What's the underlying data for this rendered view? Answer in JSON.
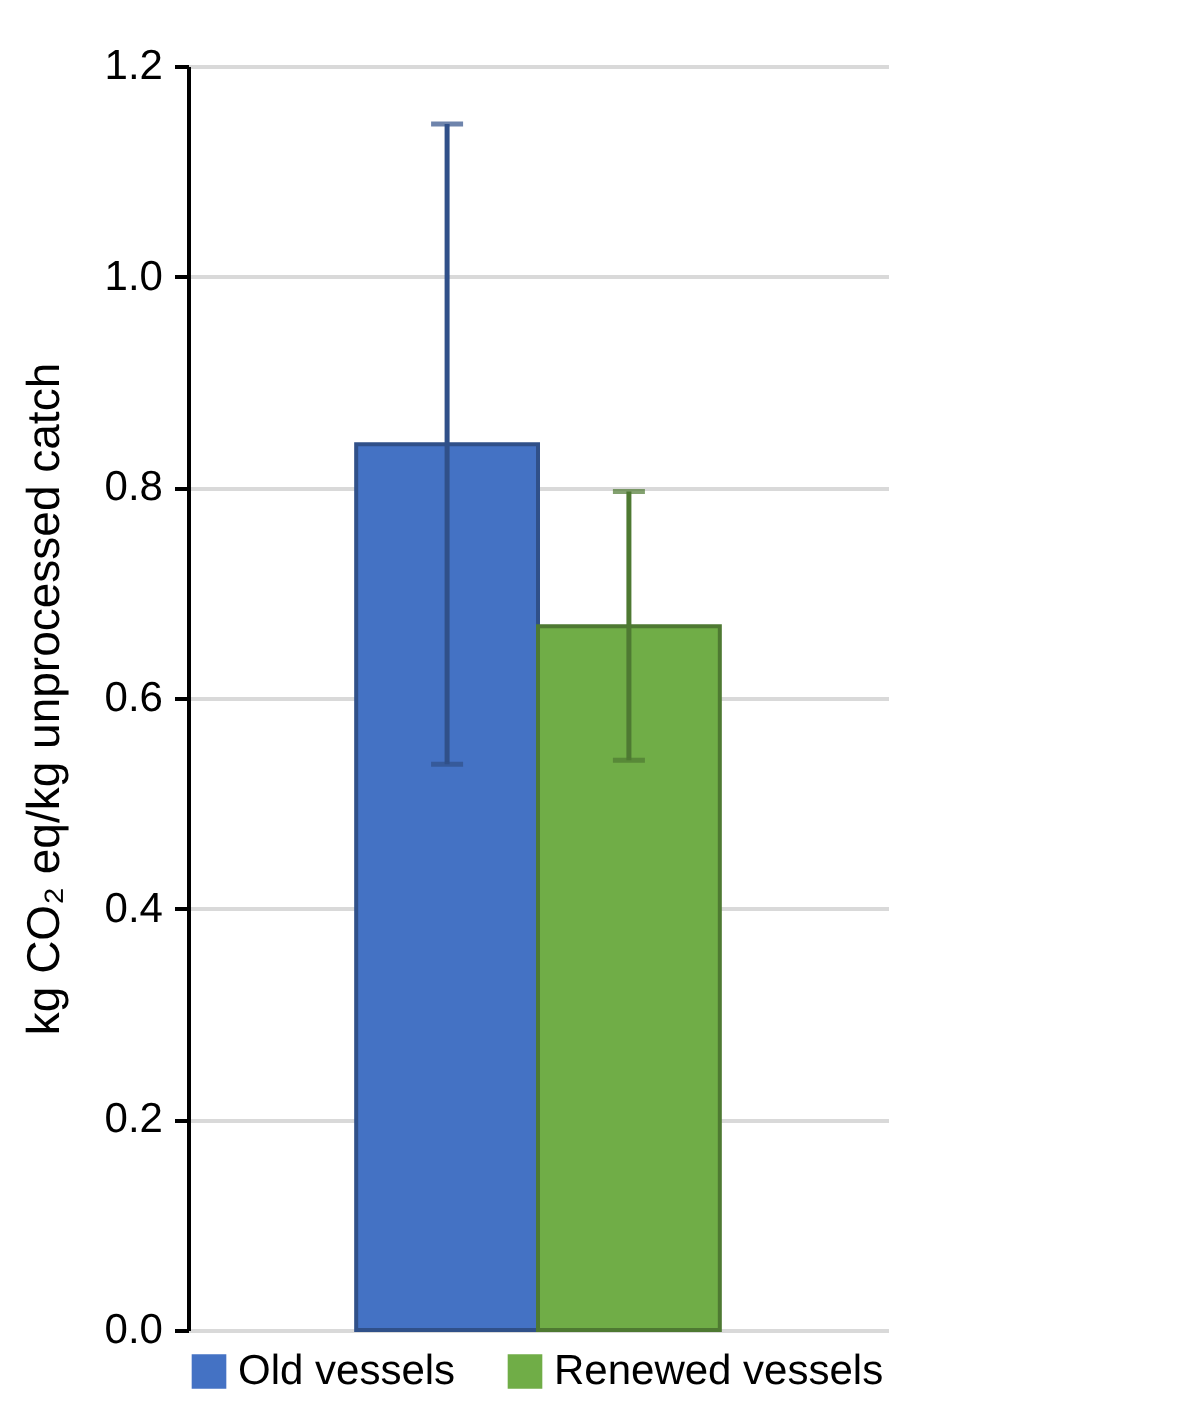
{
  "chart_data": {
    "type": "bar",
    "ylabel": "kg CO₂ eq/kg unprocessed catch",
    "categories": [
      null
    ],
    "series": [
      {
        "name": "Old vessels",
        "color": "#4472c4",
        "values": [
          0.841
        ],
        "errors": [
          [
            0.537,
            1.145
          ]
        ]
      },
      {
        "name": "Renewed vessels",
        "color": "#70ad47",
        "values": [
          0.668
        ],
        "errors": [
          [
            0.541,
            0.796
          ]
        ]
      }
    ],
    "ylim": [
      0,
      1.2
    ],
    "yticks": [
      {
        "value": 0,
        "label": "0.0"
      },
      {
        "value": 0.2,
        "label": "0.2"
      },
      {
        "value": 0.4,
        "label": "0.4"
      },
      {
        "value": 0.6,
        "label": "0.6"
      },
      {
        "value": 0.8,
        "label": "0.8"
      },
      {
        "value": 1.0,
        "label": "1.0"
      },
      {
        "value": 1.2,
        "label": "1.2"
      }
    ],
    "grid": "y",
    "legend": "bottom",
    "tick_labels": "y"
  }
}
